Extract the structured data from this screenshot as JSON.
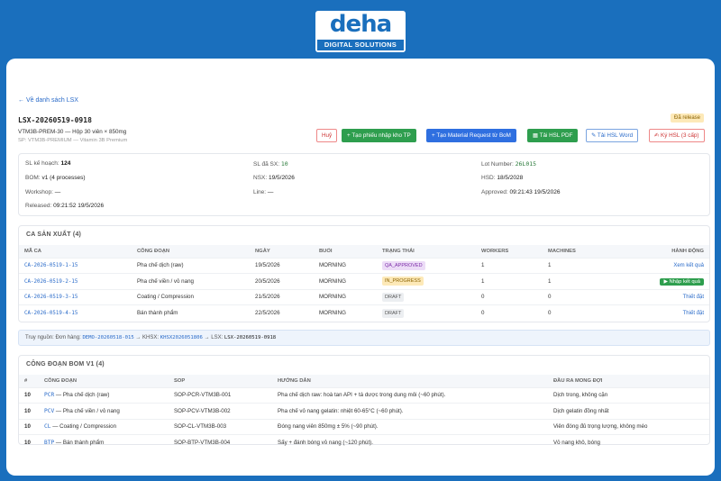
{
  "logo": {
    "word": "deha",
    "sub": "DIGITAL SOLUTIONS"
  },
  "back_link": "← Về danh sách LSX",
  "header": {
    "code": "LSX-20260519-0918",
    "subtitle": "VTM3B-PREM-30 — Hộp 30 viên × 850mg",
    "product": "SP: VTM3B-PREMIUM — Vitamin 3B Premium",
    "status_badge": "Đã release"
  },
  "actions": {
    "cancel": "Huỷ",
    "create_receipt": "+ Tạo phiếu nhập kho TP",
    "create_mr": "+ Tạo Material Request từ BoM",
    "download_pdf": "Tải HSL PDF",
    "download_word": "Tải HSL Word",
    "sign": "Ký HSL (3 cấp)"
  },
  "info": {
    "planned_label": "SL kế hoạch:",
    "planned_value": "124",
    "produced_label": "SL đã SX:",
    "produced_value": "10",
    "lot_label": "Lot Number:",
    "lot_value": "26L015",
    "bom_label": "BOM:",
    "bom_value": "v1 (4 processes)",
    "nsx_label": "NSX:",
    "nsx_value": "19/5/2026",
    "hsd_label": "HSD:",
    "hsd_value": "18/5/2028",
    "workshop_label": "Workshop:",
    "workshop_value": "—",
    "line_label": "Line:",
    "line_value": "—",
    "approved_label": "Approved:",
    "approved_value": "09:21:43 19/5/2026",
    "released_label": "Released:",
    "released_value": "09:21:52 19/5/2026"
  },
  "shifts": {
    "title": "CA SẢN XUẤT (4)",
    "headers": [
      "MÃ CA",
      "CÔNG ĐOẠN",
      "NGÀY",
      "BUỔI",
      "TRẠNG THÁI",
      "WORKERS",
      "MACHINES",
      "HÀNH ĐỘNG"
    ],
    "rows": [
      {
        "code": "CA-2026-0519-1-15",
        "stage": "Pha chế dịch (raw)",
        "date": "19/5/2026",
        "session": "MORNING",
        "status": "QA_APPROVED",
        "workers": "1",
        "machines": "1",
        "action": "Xem kết quả"
      },
      {
        "code": "CA-2026-0519-2-15",
        "stage": "Pha chế viền / vỏ nang",
        "date": "20/5/2026",
        "session": "MORNING",
        "status": "IN_PROGRESS",
        "workers": "1",
        "machines": "1",
        "action": "▶ Nhập kết quả"
      },
      {
        "code": "CA-2026-0519-3-15",
        "stage": "Coating / Compression",
        "date": "21/5/2026",
        "session": "MORNING",
        "status": "DRAFT",
        "workers": "0",
        "machines": "0",
        "action": "Thiết đặt"
      },
      {
        "code": "CA-2026-0519-4-15",
        "stage": "Bán thành phẩm",
        "date": "22/5/2026",
        "session": "MORNING",
        "status": "DRAFT",
        "workers": "0",
        "machines": "0",
        "action": "Thiết đặt"
      }
    ]
  },
  "trace": {
    "label": "Truy nguồn:",
    "order_label": "Đơn hàng:",
    "order_code": "DEMO-20260518-015",
    "plan_label": "KHSX:",
    "plan_code": "KHSX2026051806",
    "lsx_label": "LSX:",
    "lsx_code": "LSX-20260519-0918"
  },
  "bom": {
    "title": "CÔNG ĐOẠN BOM V1 (4)",
    "headers": [
      "#",
      "CÔNG ĐOẠN",
      "SOP",
      "HƯỚNG DẪN",
      "ĐẦU RA MONG ĐỢI"
    ],
    "rows": [
      {
        "num": "10",
        "code": "PCR",
        "name": "— Pha chế dịch (raw)",
        "sop": "SOP-PCR-VTM3B-001",
        "guide": "Pha chế dịch raw: hoà tan API + tá dược trong dung môi (~60 phút).",
        "output": "Dịch trong, không cặn"
      },
      {
        "num": "10",
        "code": "PCV",
        "name": "— Pha chế viền / vỏ nang",
        "sop": "SOP-PCV-VTM3B-002",
        "guide": "Pha chế vỏ nang gelatin: nhiệt 60-65°C (~60 phút).",
        "output": "Dịch gelatin đồng nhất"
      },
      {
        "num": "10",
        "code": "CL",
        "name": "— Coating / Compression",
        "sop": "SOP-CL-VTM3B-003",
        "guide": "Đóng nang viên 850mg ± 5% (~90 phút).",
        "output": "Viên đóng đủ trọng lượng, không méo"
      },
      {
        "num": "10",
        "code": "BTP",
        "name": "— Bán thành phẩm",
        "sop": "SOP-BTP-VTM3B-004",
        "guide": "Sấy + đánh bóng vỏ nang (~120 phút).",
        "output": "Vỏ nang khô, bóng"
      }
    ]
  }
}
